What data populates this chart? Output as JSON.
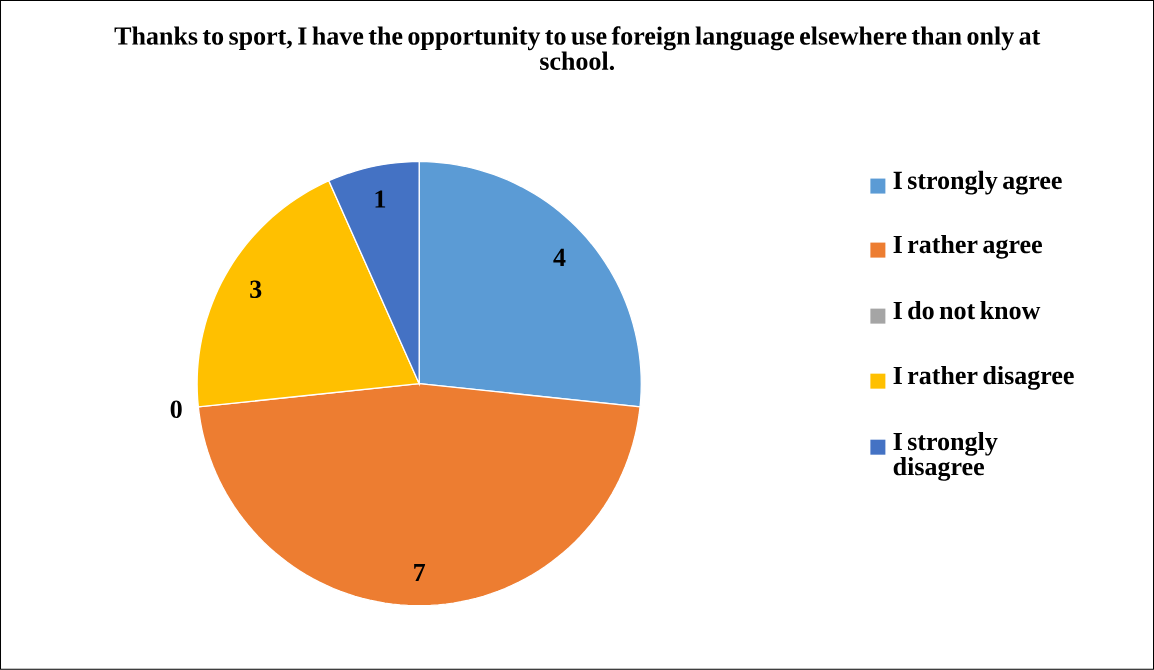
{
  "chart_data": {
    "type": "pie",
    "title": "Thanks to sport, I have the opportunity to use foreign language elsewhere than only at school.",
    "categories": [
      "I strongly agree",
      "I rather agree",
      "I do not know",
      "I rather disagree",
      "I strongly disagree"
    ],
    "values": [
      4,
      7,
      0,
      3,
      1
    ],
    "colors": [
      "#5b9bd5",
      "#ed7d31",
      "#a5a5a5",
      "#ffc000",
      "#4472c4"
    ],
    "value_labels": [
      "4",
      "7",
      "0",
      "3",
      "1"
    ],
    "legend": "right"
  }
}
